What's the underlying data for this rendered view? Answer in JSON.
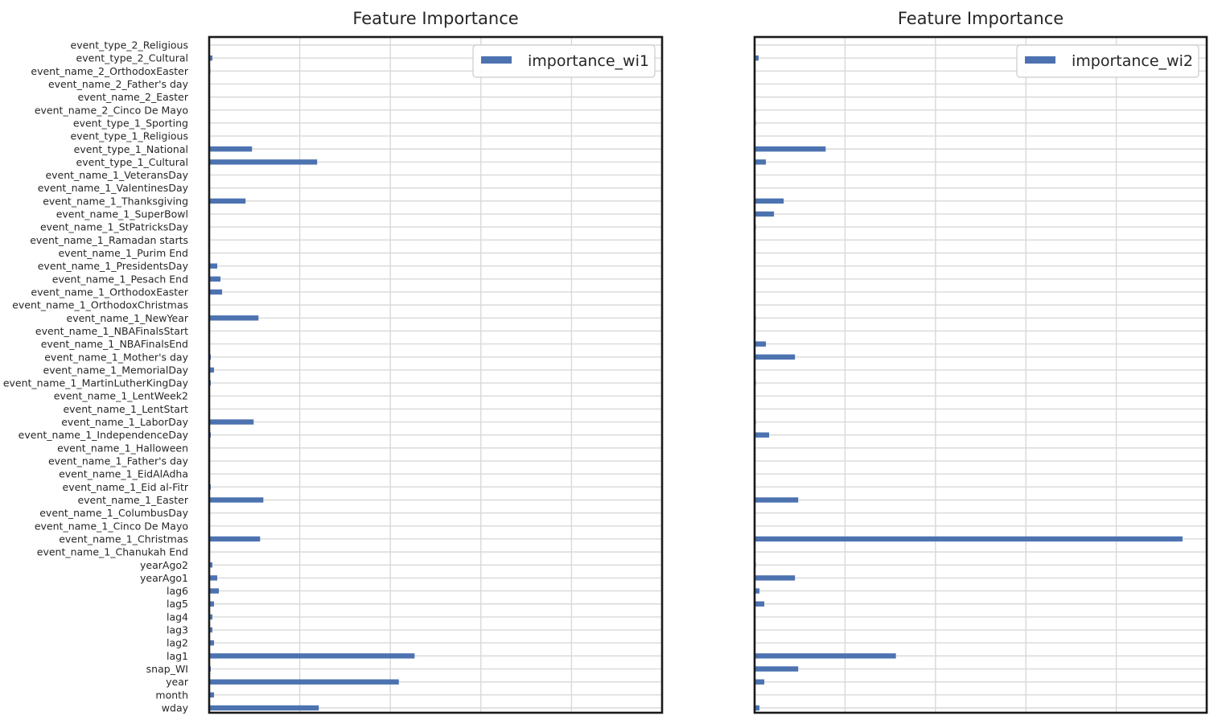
{
  "chart_data": [
    {
      "type": "bar",
      "orientation": "horizontal",
      "title": "Feature Importance",
      "xlabel": "",
      "ylabel": "",
      "xlim": [
        0,
        1.12
      ],
      "grid": true,
      "legend": "top-right",
      "series": [
        {
          "name": "importance_wi1",
          "color": "#4c72b0"
        }
      ],
      "categories": [
        "event_type_2_Religious",
        "event_type_2_Cultural",
        "event_name_2_OrthodoxEaster",
        "event_name_2_Father's day",
        "event_name_2_Easter",
        "event_name_2_Cinco De Mayo",
        "event_type_1_Sporting",
        "event_type_1_Religious",
        "event_type_1_National",
        "event_type_1_Cultural",
        "event_name_1_VeteransDay",
        "event_name_1_ValentinesDay",
        "event_name_1_Thanksgiving",
        "event_name_1_SuperBowl",
        "event_name_1_StPatricksDay",
        "event_name_1_Ramadan starts",
        "event_name_1_Purim End",
        "event_name_1_PresidentsDay",
        "event_name_1_Pesach End",
        "event_name_1_OrthodoxEaster",
        "event_name_1_OrthodoxChristmas",
        "event_name_1_NewYear",
        "event_name_1_NBAFinalsStart",
        "event_name_1_NBAFinalsEnd",
        "event_name_1_Mother's day",
        "event_name_1_MemorialDay",
        "event_name_1_MartinLutherKingDay",
        "event_name_1_LentWeek2",
        "event_name_1_LentStart",
        "event_name_1_LaborDay",
        "event_name_1_IndependenceDay",
        "event_name_1_Halloween",
        "event_name_1_Father's day",
        "event_name_1_EidAlAdha",
        "event_name_1_Eid al-Fitr",
        "event_name_1_Easter",
        "event_name_1_ColumbusDay",
        "event_name_1_Cinco De Mayo",
        "event_name_1_Christmas",
        "event_name_1_Chanukah End",
        "yearAgo2",
        "yearAgo1",
        "lag6",
        "lag5",
        "lag4",
        "lag3",
        "lag2",
        "lag1",
        "snap_WI",
        "year",
        "month",
        "wday"
      ],
      "values": [
        0.0,
        0.008,
        0.001,
        0.0,
        0.0,
        0.0,
        0.0,
        0.0,
        0.106,
        0.267,
        0.0,
        0.0,
        0.09,
        0.0,
        0.0,
        0.0,
        0.0,
        0.02,
        0.028,
        0.032,
        0.0,
        0.122,
        0.0,
        0.0,
        0.004,
        0.012,
        0.004,
        0.0,
        0.0,
        0.11,
        0.004,
        0.0,
        0.0,
        0.0,
        0.004,
        0.134,
        0.0,
        0.0,
        0.126,
        0.0,
        0.008,
        0.02,
        0.024,
        0.012,
        0.008,
        0.008,
        0.012,
        0.508,
        0.004,
        0.469,
        0.012,
        0.271
      ]
    },
    {
      "type": "bar",
      "orientation": "horizontal",
      "title": "Feature Importance",
      "xlabel": "",
      "ylabel": "",
      "xlim": [
        0,
        1.12
      ],
      "grid": true,
      "legend": "top-right",
      "series": [
        {
          "name": "importance_wi2",
          "color": "#4c72b0"
        }
      ],
      "categories": [
        "event_type_2_Religious",
        "event_type_2_Cultural",
        "event_name_2_OrthodoxEaster",
        "event_name_2_Father's day",
        "event_name_2_Easter",
        "event_name_2_Cinco De Mayo",
        "event_type_1_Sporting",
        "event_type_1_Religious",
        "event_type_1_National",
        "event_type_1_Cultural",
        "event_name_1_VeteransDay",
        "event_name_1_ValentinesDay",
        "event_name_1_Thanksgiving",
        "event_name_1_SuperBowl",
        "event_name_1_StPatricksDay",
        "event_name_1_Ramadan starts",
        "event_name_1_Purim End",
        "event_name_1_PresidentsDay",
        "event_name_1_Pesach End",
        "event_name_1_OrthodoxEaster",
        "event_name_1_OrthodoxChristmas",
        "event_name_1_NewYear",
        "event_name_1_NBAFinalsStart",
        "event_name_1_NBAFinalsEnd",
        "event_name_1_Mother's day",
        "event_name_1_MemorialDay",
        "event_name_1_MartinLutherKingDay",
        "event_name_1_LentWeek2",
        "event_name_1_LentStart",
        "event_name_1_LaborDay",
        "event_name_1_IndependenceDay",
        "event_name_1_Halloween",
        "event_name_1_Father's day",
        "event_name_1_EidAlAdha",
        "event_name_1_Eid al-Fitr",
        "event_name_1_Easter",
        "event_name_1_ColumbusDay",
        "event_name_1_Cinco De Mayo",
        "event_name_1_Christmas",
        "event_name_1_Chanukah End",
        "yearAgo2",
        "yearAgo1",
        "lag6",
        "lag5",
        "lag4",
        "lag3",
        "lag2",
        "lag1",
        "snap_WI",
        "year",
        "month",
        "wday"
      ],
      "values": [
        0.0,
        0.01,
        0.0,
        0.0,
        0.0,
        0.002,
        0.002,
        0.0,
        0.176,
        0.028,
        0.0,
        0.0,
        0.072,
        0.048,
        0.002,
        0.0,
        0.0,
        0.0,
        0.0,
        0.0,
        0.0,
        0.002,
        0.0,
        0.028,
        0.1,
        0.0,
        0.002,
        0.0,
        0.0,
        0.002,
        0.036,
        0.0,
        0.0,
        0.0,
        0.0,
        0.108,
        0.0,
        0.0,
        1.06,
        0.0,
        0.002,
        0.1,
        0.012,
        0.024,
        0.0,
        0.0,
        0.0,
        0.35,
        0.108,
        0.024,
        0.0,
        0.012
      ]
    }
  ]
}
